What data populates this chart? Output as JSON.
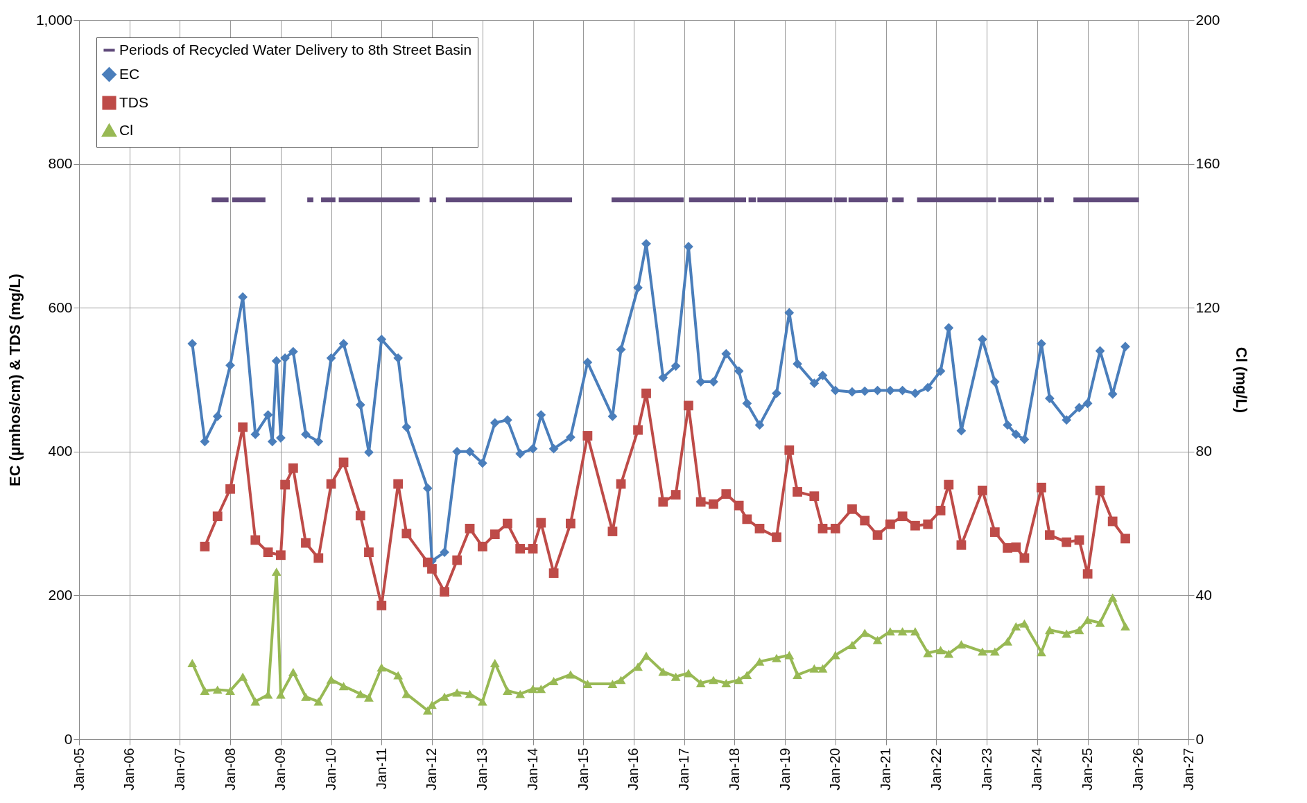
{
  "chart_data": {
    "type": "line",
    "ylabel": "EC (μmhos/cm) & TDS (mg/L)",
    "y2label": "Cl (mg/L)",
    "xlim": [
      "2005-01-01",
      "2027-01-01"
    ],
    "xticks": [
      {
        "value": "2005-01-01",
        "label": "Jan-05"
      },
      {
        "value": "2006-01-01",
        "label": "Jan-06"
      },
      {
        "value": "2007-01-01",
        "label": "Jan-07"
      },
      {
        "value": "2008-01-01",
        "label": "Jan-08"
      },
      {
        "value": "2009-01-01",
        "label": "Jan-09"
      },
      {
        "value": "2010-01-01",
        "label": "Jan-10"
      },
      {
        "value": "2011-01-01",
        "label": "Jan-11"
      },
      {
        "value": "2012-01-01",
        "label": "Jan-12"
      },
      {
        "value": "2013-01-01",
        "label": "Jan-13"
      },
      {
        "value": "2014-01-01",
        "label": "Jan-14"
      },
      {
        "value": "2015-01-01",
        "label": "Jan-15"
      },
      {
        "value": "2016-01-01",
        "label": "Jan-16"
      },
      {
        "value": "2017-01-01",
        "label": "Jan-17"
      },
      {
        "value": "2018-01-01",
        "label": "Jan-18"
      },
      {
        "value": "2019-01-01",
        "label": "Jan-19"
      },
      {
        "value": "2020-01-01",
        "label": "Jan-20"
      },
      {
        "value": "2021-01-01",
        "label": "Jan-21"
      },
      {
        "value": "2022-01-01",
        "label": "Jan-22"
      },
      {
        "value": "2023-01-01",
        "label": "Jan-23"
      },
      {
        "value": "2024-01-01",
        "label": "Jan-24"
      },
      {
        "value": "2025-01-01",
        "label": "Jan-25"
      },
      {
        "value": "2026-01-01",
        "label": "Jan-26"
      },
      {
        "value": "2027-01-01",
        "label": "Jan-27"
      }
    ],
    "ylim": [
      0,
      1000
    ],
    "yticks": [
      0,
      200,
      400,
      600,
      800,
      {
        "value": 1000,
        "label": "1,000"
      }
    ],
    "y2lim": [
      0,
      200
    ],
    "y2ticks": [
      0,
      40,
      80,
      120,
      160,
      200
    ],
    "grid": true,
    "legend": "top left",
    "line_style": "solid",
    "series": [
      {
        "name": "Periods of Recycled Water Delivery to 8th Street Basin",
        "color": "#604a7b",
        "marker": "none",
        "x": [
          "2007-08-20",
          "2007-12-20",
          "2008-01-01",
          "2008-01-15",
          "2008-09-12",
          "2009-01-01",
          "2009-07-12",
          "2009-08-25",
          "2009-09-20",
          "2009-10-20",
          "2010-02-01",
          "2010-02-12",
          "2010-02-25",
          "2011-10-05",
          "2011-11-10",
          "2011-12-15",
          "2012-02-01",
          "2012-03-01",
          "2012-04-10",
          "2014-10-12",
          "2015-03-01",
          "2015-07-25",
          "2016-12-28",
          "2017-01-15",
          "2017-02-05",
          "2018-03-25",
          "2018-04-03",
          "2018-04-12",
          "2018-06-05",
          "2018-06-10",
          "2018-06-15",
          "2019-12-10",
          "2019-12-15",
          "2019-12-20",
          "2020-03-25",
          "2020-03-30",
          "2020-04-05",
          "2021-01-15",
          "2021-02-01",
          "2021-02-15",
          "2021-05-10",
          "2021-07-01",
          "2021-08-15",
          "2023-03-10",
          "2023-03-17",
          "2023-03-25",
          "2024-02-01",
          "2024-02-10",
          "2024-02-20",
          "2024-05-01",
          "2024-07-01",
          "2024-09-20",
          "2026-01-08"
        ],
        "values": [
          750,
          750,
          null,
          750,
          750,
          null,
          750,
          750,
          null,
          750,
          750,
          null,
          750,
          750,
          null,
          750,
          750,
          null,
          750,
          750,
          null,
          750,
          750,
          null,
          750,
          750,
          null,
          750,
          750,
          null,
          750,
          750,
          null,
          750,
          750,
          null,
          750,
          750,
          null,
          750,
          750,
          null,
          750,
          750,
          null,
          750,
          750,
          null,
          750,
          750,
          null,
          750,
          750
        ]
      },
      {
        "name": "EC",
        "color": "#4a7ebb",
        "marker": "diamond",
        "x": [
          "2007-04",
          "2007-07",
          "2007-10",
          "2008-01",
          "2008-04",
          "2008-07",
          "2008-10",
          "2008-11",
          "2008-12",
          "2009-01",
          "2009-02",
          "2009-04",
          "2009-07",
          "2009-10",
          "2010-01",
          "2010-04",
          "2010-08",
          "2010-10",
          "2011-01",
          "2011-05",
          "2011-07",
          "2011-12",
          "2012-01",
          "2012-04",
          "2012-07",
          "2012-10",
          "2013-01",
          "2013-04",
          "2013-07",
          "2013-10",
          "2014-01",
          "2014-03",
          "2014-06",
          "2014-10",
          "2015-02",
          "2015-08",
          "2015-10",
          "2016-02",
          "2016-04",
          "2016-08",
          "2016-11",
          "2017-02",
          "2017-05",
          "2017-08",
          "2017-11",
          "2018-02",
          "2018-04",
          "2018-07",
          "2018-11",
          "2019-02",
          "2019-04",
          "2019-08",
          "2019-10",
          "2020-01",
          "2020-05",
          "2020-08",
          "2020-11",
          "2021-02",
          "2021-05",
          "2021-08",
          "2021-11",
          "2022-02",
          "2022-04",
          "2022-07",
          "2022-12",
          "2023-03",
          "2023-06",
          "2023-08",
          "2023-10",
          "2024-02",
          "2024-04",
          "2024-08",
          "2024-11",
          "2025-01",
          "2025-04",
          "2025-07",
          "2025-10"
        ],
        "values": [
          550,
          414,
          449,
          520,
          615,
          424,
          451,
          414,
          526,
          419,
          530,
          539,
          424,
          414,
          530,
          550,
          465,
          399,
          556,
          530,
          434,
          349,
          248,
          260,
          400,
          400,
          384,
          440,
          444,
          397,
          404,
          451,
          404,
          420,
          524,
          449,
          542,
          628,
          689,
          503,
          519,
          685,
          497,
          497,
          536,
          512,
          467,
          437,
          481,
          593,
          522,
          495,
          506,
          485,
          483,
          484,
          485,
          485,
          485,
          481,
          489,
          512,
          572,
          429,
          556,
          497,
          437,
          424,
          417,
          550,
          474,
          444,
          461,
          467,
          540,
          480,
          546
        ]
      },
      {
        "name": "TDS",
        "color": "#be4b48",
        "marker": "square",
        "x": [
          "2007-07",
          "2007-10",
          "2008-01",
          "2008-04",
          "2008-07",
          "2008-10",
          "2009-01",
          "2009-02",
          "2009-04",
          "2009-07",
          "2009-10",
          "2010-01",
          "2010-04",
          "2010-08",
          "2010-10",
          "2011-01",
          "2011-05",
          "2011-07",
          "2011-12",
          "2012-01",
          "2012-04",
          "2012-07",
          "2012-10",
          "2013-01",
          "2013-04",
          "2013-07",
          "2013-10",
          "2014-01",
          "2014-03",
          "2014-06",
          "2014-10",
          "2015-02",
          "2015-08",
          "2015-10",
          "2016-02",
          "2016-04",
          "2016-08",
          "2016-11",
          "2017-02",
          "2017-05",
          "2017-08",
          "2017-11",
          "2018-02",
          "2018-04",
          "2018-07",
          "2018-11",
          "2019-02",
          "2019-04",
          "2019-08",
          "2019-10",
          "2020-01",
          "2020-05",
          "2020-08",
          "2020-11",
          "2021-02",
          "2021-05",
          "2021-08",
          "2021-11",
          "2022-02",
          "2022-04",
          "2022-07",
          "2022-12",
          "2023-03",
          "2023-06",
          "2023-08",
          "2023-10",
          "2024-02",
          "2024-04",
          "2024-08",
          "2024-11",
          "2025-01",
          "2025-04",
          "2025-07",
          "2025-10"
        ],
        "values": [
          268,
          310,
          348,
          434,
          277,
          260,
          256,
          354,
          377,
          273,
          252,
          355,
          385,
          311,
          260,
          186,
          355,
          286,
          246,
          237,
          205,
          249,
          293,
          268,
          285,
          300,
          265,
          265,
          301,
          231,
          300,
          422,
          289,
          355,
          430,
          481,
          330,
          340,
          464,
          330,
          327,
          341,
          325,
          306,
          293,
          281,
          402,
          344,
          338,
          293,
          293,
          320,
          304,
          284,
          299,
          310,
          297,
          299,
          318,
          354,
          270,
          346,
          288,
          266,
          267,
          252,
          350,
          284,
          274,
          277,
          230,
          346,
          303,
          279
        ]
      },
      {
        "name": "Cl",
        "color": "#98b954",
        "marker": "triangle",
        "axis": "y2",
        "x": [
          "2007-04",
          "2007-07",
          "2007-10",
          "2008-01",
          "2008-04",
          "2008-07",
          "2008-10",
          "2008-12",
          "2009-01",
          "2009-04",
          "2009-07",
          "2009-10",
          "2010-01",
          "2010-04",
          "2010-08",
          "2010-10",
          "2011-01",
          "2011-05",
          "2011-07",
          "2011-12",
          "2012-01",
          "2012-04",
          "2012-07",
          "2012-10",
          "2013-01",
          "2013-04",
          "2013-07",
          "2013-10",
          "2014-01",
          "2014-03",
          "2014-06",
          "2014-10",
          "2015-02",
          "2015-08",
          "2015-10",
          "2016-02",
          "2016-04",
          "2016-08",
          "2016-11",
          "2017-02",
          "2017-05",
          "2017-08",
          "2017-11",
          "2018-02",
          "2018-04",
          "2018-07",
          "2018-11",
          "2019-02",
          "2019-04",
          "2019-08",
          "2019-10",
          "2020-01",
          "2020-05",
          "2020-08",
          "2020-11",
          "2021-02",
          "2021-05",
          "2021-08",
          "2021-11",
          "2022-02",
          "2022-04",
          "2022-07",
          "2022-12",
          "2023-03",
          "2023-06",
          "2023-08",
          "2023-10",
          "2024-02",
          "2024-04",
          "2024-08",
          "2024-11",
          "2025-01",
          "2025-04",
          "2025-07",
          "2025-10"
        ],
        "values": [
          21.2,
          13.5,
          13.8,
          13.5,
          17.4,
          10.5,
          12.4,
          46.6,
          12.4,
          18.7,
          11.8,
          10.5,
          16.6,
          14.8,
          12.6,
          11.6,
          20,
          17.8,
          12.6,
          8,
          9.6,
          11.8,
          13,
          12.6,
          10.5,
          21.2,
          13.5,
          12.6,
          14,
          14,
          16.2,
          18,
          15.4,
          15.4,
          16.5,
          20.2,
          23.2,
          18.8,
          17.4,
          18.4,
          15.6,
          16.5,
          15.6,
          16.5,
          17.9,
          21.6,
          22.6,
          23.4,
          17.9,
          19.7,
          19.7,
          23.4,
          26.2,
          29.6,
          27.6,
          30,
          30,
          30,
          24,
          24.8,
          23.8,
          26.4,
          24.4,
          24.4,
          27.2,
          31.4,
          32.2,
          24.2,
          30.4,
          29.4,
          30.4,
          33.2,
          32.4,
          39.4,
          31.4
        ]
      }
    ]
  }
}
